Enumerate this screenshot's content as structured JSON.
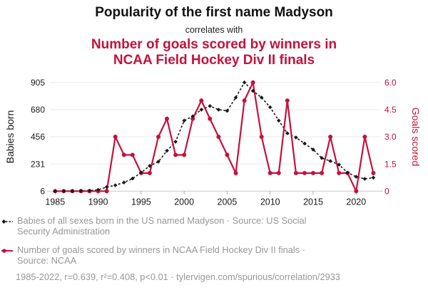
{
  "header": {
    "title": "Popularity of the first name Madyson",
    "connector": "correlates with",
    "subtitle_lines": [
      "Number of goals scored by winners in",
      "NCAA Field Hockey Div II finals"
    ]
  },
  "colors": {
    "accent_red": "#c4123c",
    "series_black": "#1a1a1a",
    "muted_text": "#979797",
    "gridline": "#e9e9e9",
    "axis_line": "#c9c9c9",
    "tick_mark": "#aaaaaa"
  },
  "chart_data": {
    "type": "line",
    "title": "Popularity of the first name Madyson vs Number of goals scored by winners in NCAA Field Hockey Div II finals",
    "x": [
      1985,
      1986,
      1987,
      1988,
      1989,
      1990,
      1991,
      1992,
      1993,
      1994,
      1995,
      1996,
      1997,
      1998,
      1999,
      2000,
      2001,
      2002,
      2003,
      2004,
      2005,
      2006,
      2007,
      2008,
      2009,
      2010,
      2011,
      2012,
      2013,
      2014,
      2015,
      2016,
      2017,
      2018,
      2019,
      2020,
      2021,
      2022
    ],
    "series": [
      {
        "name": "Babies of all sexes born in the US named Madyson",
        "axis": "left",
        "color": "#1a1a1a",
        "line_style": "dashed",
        "marker": "diamond",
        "values": [
          6,
          7,
          7,
          9,
          11,
          17,
          40,
          55,
          78,
          110,
          160,
          215,
          250,
          340,
          415,
          590,
          625,
          680,
          710,
          680,
          670,
          780,
          905,
          835,
          780,
          700,
          590,
          485,
          450,
          400,
          350,
          280,
          255,
          225,
          160,
          125,
          108,
          118
        ]
      },
      {
        "name": "Number of goals scored by winners in NCAA Field Hockey Div II finals",
        "axis": "right",
        "color": "#c4123c",
        "line_style": "solid",
        "marker": "circle",
        "values": [
          0,
          0,
          0,
          0,
          0,
          0,
          0,
          3,
          2,
          2,
          1,
          1,
          3,
          4,
          2,
          2,
          4,
          5,
          4,
          3,
          2,
          1,
          5,
          6,
          3,
          1,
          1,
          5,
          1,
          1,
          1,
          1,
          3,
          1,
          1,
          0,
          3,
          1
        ]
      }
    ],
    "left_axis": {
      "label": "Babies born",
      "ticks": [
        6,
        231,
        456,
        680,
        905
      ],
      "range": [
        6,
        905
      ]
    },
    "right_axis": {
      "label": "Goals scored",
      "ticks": [
        "0",
        "1.5",
        "3.0",
        "4.5",
        "6.0"
      ],
      "tick_values": [
        0,
        1.5,
        3,
        4.5,
        6
      ],
      "range": [
        0,
        6
      ]
    },
    "x_axis": {
      "ticks": [
        1985,
        1990,
        1995,
        2000,
        2005,
        2010,
        2015,
        2020
      ],
      "range": [
        1985,
        2022
      ]
    },
    "grid": "horizontal",
    "legend_position": "bottom"
  },
  "legend": [
    {
      "symbol": "black-dashed-diamond",
      "label": "Babies of all sexes born in the US named Madyson · Source: US Social Security Administration",
      "lines": [
        "Babies of all sexes born in the US named Madyson · Source: US Social",
        "Security Administration"
      ]
    },
    {
      "symbol": "red-solid-circle",
      "label": "Number of goals scored by winners in NCAA Field Hockey Div II finals · Source: NCAA",
      "lines": [
        "Number of goals scored by winners in NCAA Field Hockey Div II finals ·",
        "Source: NCAA"
      ]
    }
  ],
  "footer": {
    "text": "1985-2022, r=0.639, r²=0.408, p<0.01 · tylervigen.com/spurious/correlation/2933"
  }
}
